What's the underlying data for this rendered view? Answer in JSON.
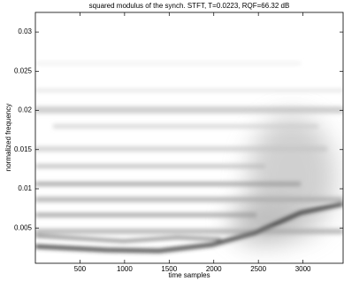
{
  "chart_data": {
    "type": "image",
    "title": "squared modulus of the synch. STFT, T=0.0223, RQF=66.32 dB",
    "xlabel": "time samples",
    "ylabel": "normalized frequency",
    "xlim": [
      0,
      3450
    ],
    "xticks": [
      500,
      1000,
      1500,
      2000,
      2500,
      3000
    ],
    "ylim": [
      0.0005,
      0.0325
    ],
    "yticks": [
      0.005,
      0.01,
      0.015,
      0.02,
      0.025,
      0.03
    ]
  }
}
